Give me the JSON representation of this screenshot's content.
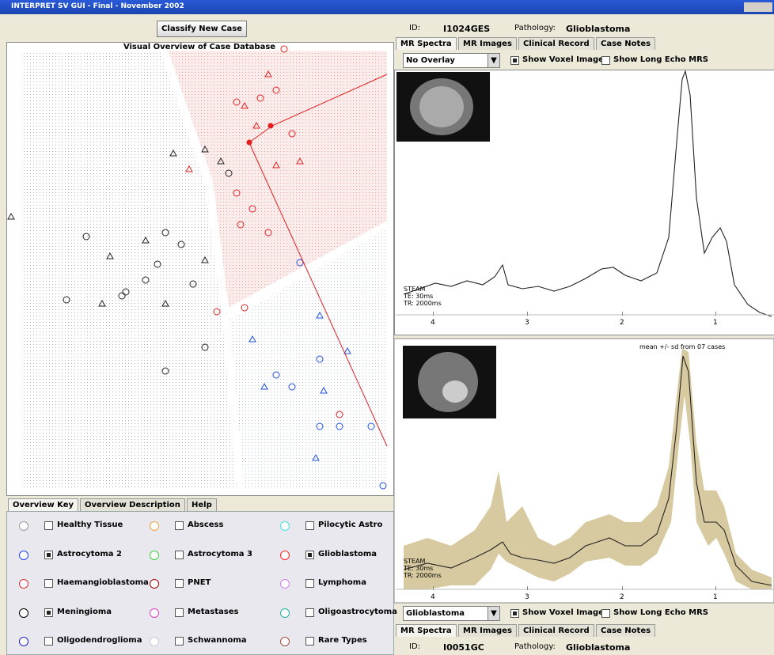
{
  "window": {
    "title": "INTERPRET SV GUI - Final - November 2002"
  },
  "left": {
    "button": "Classify New Case",
    "plot_title": "Visual Overview of Case Database",
    "tabs": [
      "Overview Key",
      "Overview Description",
      "Help"
    ],
    "key": [
      {
        "label": "Healthy Tissue",
        "color": "#9a9a9a",
        "checked": false
      },
      {
        "label": "Abscess",
        "color": "#f0a040",
        "checked": false
      },
      {
        "label": "Pilocytic Astro",
        "color": "#40e0e0",
        "checked": false
      },
      {
        "label": "Astrocytoma 2",
        "color": "#2040ff",
        "checked": true
      },
      {
        "label": "Astrocytoma 3",
        "color": "#40d040",
        "checked": false
      },
      {
        "label": "Glioblastoma",
        "color": "#ff2020",
        "checked": true
      },
      {
        "label": "Haemangioblastoma",
        "color": "#e03030",
        "checked": false
      },
      {
        "label": "PNET",
        "color": "#a00000",
        "checked": false
      },
      {
        "label": "Lymphoma",
        "color": "#d080f0",
        "checked": false
      },
      {
        "label": "Meningioma",
        "color": "#000000",
        "checked": true
      },
      {
        "label": "Metastases",
        "color": "#e040c0",
        "checked": false
      },
      {
        "label": "Oligoastrocytoma",
        "color": "#20b0a0",
        "checked": false
      },
      {
        "label": "Oligodendroglioma",
        "color": "#2020c0",
        "checked": false
      },
      {
        "label": "Schwannoma",
        "color": "#c8c8d8",
        "checked": false
      },
      {
        "label": "Rare Types",
        "color": "#a05040",
        "checked": false
      }
    ]
  },
  "top_case": {
    "id_label": "ID:",
    "id": "I1024GES",
    "pathology_label": "Pathology:",
    "pathology": "Glioblastoma",
    "tabs": [
      "MR Spectra",
      "MR Images",
      "Clinical Record",
      "Case Notes"
    ],
    "overlay": "No Overlay",
    "show_voxel": "Show Voxel Image",
    "show_voxel_checked": true,
    "long_echo": "Show Long Echo MRS",
    "long_echo_checked": false,
    "spectrum_labels": [
      "STEAM",
      "TE: 30ms",
      "TR: 2000ms"
    ],
    "axis_ticks": [
      "4",
      "3",
      "2",
      "1"
    ]
  },
  "bottom_case": {
    "note": "mean +/- sd from 07 cases",
    "spectrum_labels": [
      "STEAM",
      "TE: 30ms",
      "TR: 2000ms"
    ],
    "axis_ticks": [
      "4",
      "3",
      "2",
      "1"
    ],
    "overlay": "Glioblastoma",
    "show_voxel": "Show Voxel Image",
    "show_voxel_checked": true,
    "long_echo": "Show Long Echo MRS",
    "long_echo_checked": false,
    "tabs": [
      "MR Spectra",
      "MR Images",
      "Clinical Record",
      "Case Notes"
    ],
    "id_label": "ID:",
    "id": "I0051GC",
    "pathology_label": "Pathology:",
    "pathology": "Glioblastoma"
  }
}
